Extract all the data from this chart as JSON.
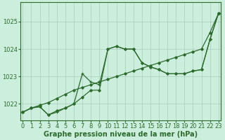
{
  "xlabel": "Graphe pression niveau de la mer (hPa)",
  "x": [
    0,
    1,
    2,
    3,
    4,
    5,
    6,
    7,
    8,
    9,
    10,
    11,
    12,
    13,
    14,
    15,
    16,
    17,
    18,
    19,
    20,
    21,
    22,
    23
  ],
  "line_straight": [
    1021.7,
    1021.85,
    1021.95,
    1022.05,
    1022.2,
    1022.35,
    1022.5,
    1022.6,
    1022.7,
    1022.8,
    1022.9,
    1023.0,
    1023.1,
    1023.2,
    1023.3,
    1023.4,
    1023.5,
    1023.6,
    1023.7,
    1023.8,
    1023.9,
    1024.0,
    1024.6,
    1025.3
  ],
  "line_wavy": [
    1021.7,
    1021.85,
    1021.9,
    1021.6,
    1021.75,
    1021.85,
    1022.0,
    1022.25,
    1022.5,
    1022.5,
    1024.0,
    1024.1,
    1024.0,
    1024.0,
    1023.5,
    1023.35,
    1023.25,
    1023.1,
    1023.1,
    1023.1,
    1023.2,
    1023.25,
    1024.35,
    1025.3
  ],
  "line_mid": [
    1021.7,
    1021.85,
    1021.9,
    1021.6,
    1021.7,
    1021.85,
    1022.0,
    1023.1,
    1022.8,
    1022.7,
    1024.0,
    1024.1,
    1024.0,
    1024.0,
    1023.5,
    1023.35,
    1023.25,
    1023.1,
    1023.1,
    1023.1,
    1023.2,
    1023.25,
    1024.35,
    1025.3
  ],
  "bg_color": "#cceedd",
  "grid_color": "#aaccbb",
  "line_color": "#2d6a2d",
  "ylim_min": 1021.4,
  "ylim_max": 1025.7,
  "yticks": [
    1022,
    1023,
    1024,
    1025
  ],
  "fontsize_label": 7,
  "fontsize_tick": 6
}
